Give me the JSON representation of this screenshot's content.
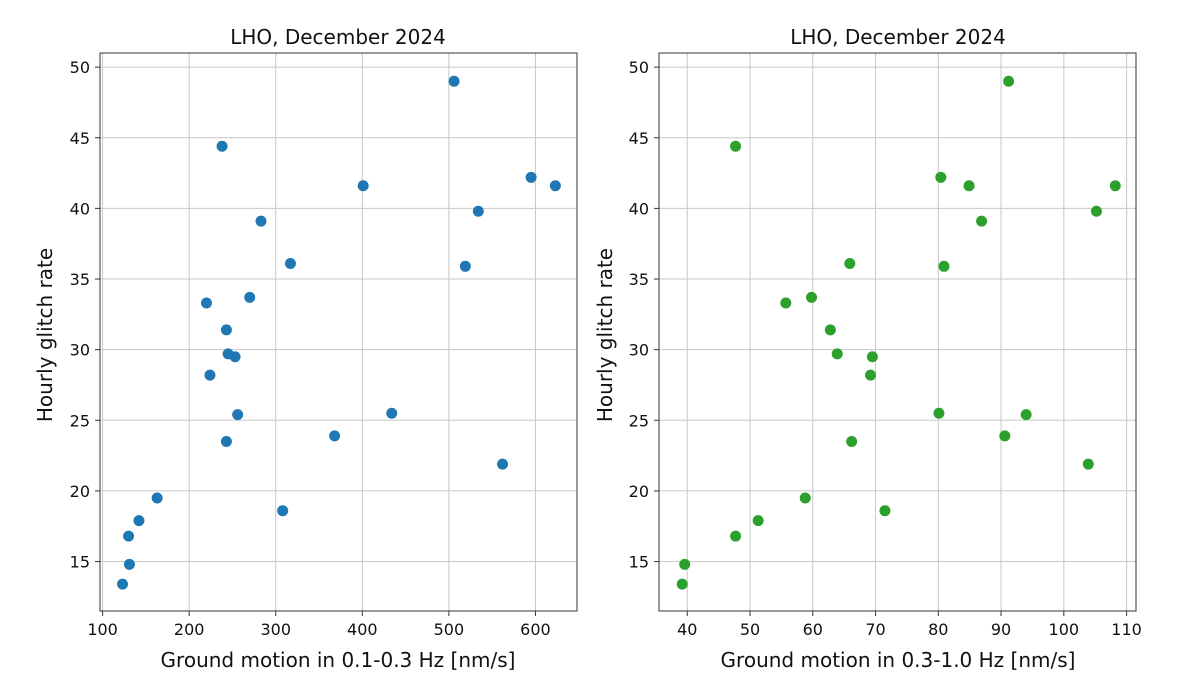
{
  "chart_data": [
    {
      "type": "scatter",
      "title": "LHO, December 2024",
      "xlabel": "Ground motion in 0.1-0.3 Hz [nm/s]",
      "ylabel": "Hourly glitch rate",
      "xlim": [
        97,
        648
      ],
      "ylim": [
        11.5,
        51
      ],
      "xticks": [
        100,
        200,
        300,
        400,
        500,
        600
      ],
      "yticks": [
        15,
        20,
        25,
        30,
        35,
        40,
        45,
        50
      ],
      "grid": true,
      "color": "#1f77b4",
      "points": [
        {
          "x": 506,
          "y": 49.0
        },
        {
          "x": 238,
          "y": 44.4
        },
        {
          "x": 595,
          "y": 42.2
        },
        {
          "x": 401,
          "y": 41.6
        },
        {
          "x": 623,
          "y": 41.6
        },
        {
          "x": 534,
          "y": 39.8
        },
        {
          "x": 283,
          "y": 39.1
        },
        {
          "x": 317,
          "y": 36.1
        },
        {
          "x": 519,
          "y": 35.9
        },
        {
          "x": 270,
          "y": 33.7
        },
        {
          "x": 220,
          "y": 33.3
        },
        {
          "x": 243,
          "y": 31.4
        },
        {
          "x": 245,
          "y": 29.7
        },
        {
          "x": 253,
          "y": 29.5
        },
        {
          "x": 224,
          "y": 28.2
        },
        {
          "x": 434,
          "y": 25.5
        },
        {
          "x": 256,
          "y": 25.4
        },
        {
          "x": 368,
          "y": 23.9
        },
        {
          "x": 243,
          "y": 23.5
        },
        {
          "x": 562,
          "y": 21.9
        },
        {
          "x": 163,
          "y": 19.5
        },
        {
          "x": 308,
          "y": 18.6
        },
        {
          "x": 142,
          "y": 17.9
        },
        {
          "x": 130,
          "y": 16.8
        },
        {
          "x": 131,
          "y": 14.8
        },
        {
          "x": 123,
          "y": 13.4
        }
      ]
    },
    {
      "type": "scatter",
      "title": "LHO, December 2024",
      "xlabel": "Ground motion in 0.3-1.0 Hz [nm/s]",
      "ylabel": "Hourly glitch rate",
      "xlim": [
        35.5,
        111.5
      ],
      "ylim": [
        11.5,
        51
      ],
      "xticks": [
        40,
        50,
        60,
        70,
        80,
        90,
        100,
        110
      ],
      "yticks": [
        15,
        20,
        25,
        30,
        35,
        40,
        45,
        50
      ],
      "grid": true,
      "color": "#2ca02c",
      "points": [
        {
          "x": 91.2,
          "y": 49.0
        },
        {
          "x": 47.7,
          "y": 44.4
        },
        {
          "x": 80.4,
          "y": 42.2
        },
        {
          "x": 84.9,
          "y": 41.6
        },
        {
          "x": 108.2,
          "y": 41.6
        },
        {
          "x": 105.2,
          "y": 39.8
        },
        {
          "x": 86.9,
          "y": 39.1
        },
        {
          "x": 65.9,
          "y": 36.1
        },
        {
          "x": 80.9,
          "y": 35.9
        },
        {
          "x": 59.8,
          "y": 33.7
        },
        {
          "x": 55.7,
          "y": 33.3
        },
        {
          "x": 62.8,
          "y": 31.4
        },
        {
          "x": 63.9,
          "y": 29.7
        },
        {
          "x": 69.5,
          "y": 29.5
        },
        {
          "x": 69.2,
          "y": 28.2
        },
        {
          "x": 80.1,
          "y": 25.5
        },
        {
          "x": 94.0,
          "y": 25.4
        },
        {
          "x": 90.6,
          "y": 23.9
        },
        {
          "x": 66.2,
          "y": 23.5
        },
        {
          "x": 103.9,
          "y": 21.9
        },
        {
          "x": 58.8,
          "y": 19.5
        },
        {
          "x": 71.5,
          "y": 18.6
        },
        {
          "x": 51.3,
          "y": 17.9
        },
        {
          "x": 47.7,
          "y": 16.8
        },
        {
          "x": 39.6,
          "y": 14.8
        },
        {
          "x": 39.2,
          "y": 13.4
        }
      ]
    }
  ]
}
